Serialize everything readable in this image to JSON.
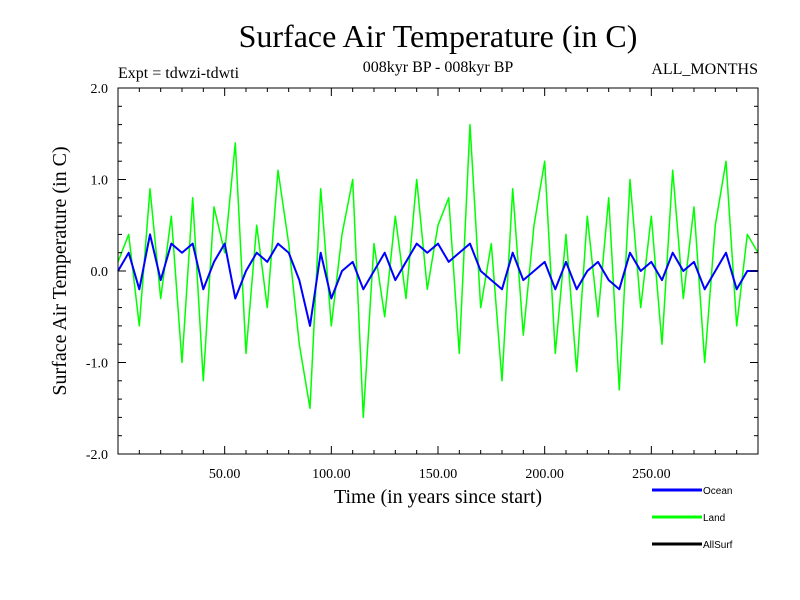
{
  "chart_data": {
    "type": "line",
    "title": "Surface Air Temperature (in C)",
    "subtitle_left": "Expt = tdwzi-tdwti",
    "subtitle_center": "008kyr BP - 008kyr BP",
    "subtitle_right": "ALL_MONTHS",
    "xlabel": "Time (in years since start)",
    "ylabel": "Surface Air Temperature (in C)",
    "xlim": [
      0,
      300
    ],
    "ylim": [
      -2.0,
      2.0
    ],
    "x_ticks": [
      50,
      100,
      150,
      200,
      250
    ],
    "x_tick_labels": [
      "50.00",
      "100.00",
      "150.00",
      "200.00",
      "250.00"
    ],
    "y_ticks": [
      -2.0,
      -1.0,
      0.0,
      1.0,
      2.0
    ],
    "y_tick_labels": [
      "-2.0",
      "-1.0",
      "0.0",
      "1.0",
      "2.0"
    ],
    "grid": false,
    "legend_position": "bottom-right",
    "series": [
      {
        "name": "Land",
        "color": "#00ff00",
        "x": [
          0,
          5,
          10,
          15,
          20,
          25,
          30,
          35,
          40,
          45,
          50,
          55,
          60,
          65,
          70,
          75,
          80,
          85,
          90,
          95,
          100,
          105,
          110,
          115,
          120,
          125,
          130,
          135,
          140,
          145,
          150,
          155,
          160,
          165,
          170,
          175,
          180,
          185,
          190,
          195,
          200,
          205,
          210,
          215,
          220,
          225,
          230,
          235,
          240,
          245,
          250,
          255,
          260,
          265,
          270,
          275,
          280,
          285,
          290,
          295,
          300
        ],
        "y": [
          0.1,
          0.4,
          -0.6,
          0.9,
          -0.3,
          0.6,
          -1.0,
          0.8,
          -1.2,
          0.7,
          0.2,
          1.4,
          -0.9,
          0.5,
          -0.4,
          1.1,
          0.3,
          -0.8,
          -1.5,
          0.9,
          -0.6,
          0.4,
          1.0,
          -1.6,
          0.3,
          -0.5,
          0.6,
          -0.3,
          1.0,
          -0.2,
          0.5,
          0.8,
          -0.9,
          1.6,
          -0.4,
          0.3,
          -1.2,
          0.9,
          -0.7,
          0.5,
          1.2,
          -0.9,
          0.4,
          -1.1,
          0.6,
          -0.5,
          0.8,
          -1.3,
          1.0,
          -0.4,
          0.6,
          -0.8,
          1.1,
          -0.3,
          0.7,
          -1.0,
          0.5,
          1.2,
          -0.6,
          0.4,
          0.2
        ]
      },
      {
        "name": "Ocean",
        "color": "#0000ff",
        "x": [
          0,
          5,
          10,
          15,
          20,
          25,
          30,
          35,
          40,
          45,
          50,
          55,
          60,
          65,
          70,
          75,
          80,
          85,
          90,
          95,
          100,
          105,
          110,
          115,
          120,
          125,
          130,
          135,
          140,
          145,
          150,
          155,
          160,
          165,
          170,
          175,
          180,
          185,
          190,
          195,
          200,
          205,
          210,
          215,
          220,
          225,
          230,
          235,
          240,
          245,
          250,
          255,
          260,
          265,
          270,
          275,
          280,
          285,
          290,
          295,
          300
        ],
        "y": [
          0.0,
          0.2,
          -0.2,
          0.4,
          -0.1,
          0.3,
          0.2,
          0.3,
          -0.2,
          0.1,
          0.3,
          -0.3,
          0.0,
          0.2,
          0.1,
          0.3,
          0.2,
          -0.1,
          -0.6,
          0.2,
          -0.3,
          0.0,
          0.1,
          -0.2,
          0.0,
          0.2,
          -0.1,
          0.1,
          0.3,
          0.2,
          0.3,
          0.1,
          0.2,
          0.3,
          0.0,
          -0.1,
          -0.2,
          0.2,
          -0.1,
          0.0,
          0.1,
          -0.2,
          0.1,
          -0.2,
          0.0,
          0.1,
          -0.1,
          -0.2,
          0.2,
          0.0,
          0.1,
          -0.1,
          0.2,
          0.0,
          0.1,
          -0.2,
          0.0,
          0.2,
          -0.2,
          0.0,
          0.0
        ]
      },
      {
        "name": "AllSurf",
        "color": "#000000",
        "x": [],
        "y": []
      }
    ],
    "legend": [
      {
        "label": "Ocean",
        "color": "#0000ff"
      },
      {
        "label": "Land",
        "color": "#00ff00"
      },
      {
        "label": "AllSurf",
        "color": "#000000"
      }
    ]
  }
}
